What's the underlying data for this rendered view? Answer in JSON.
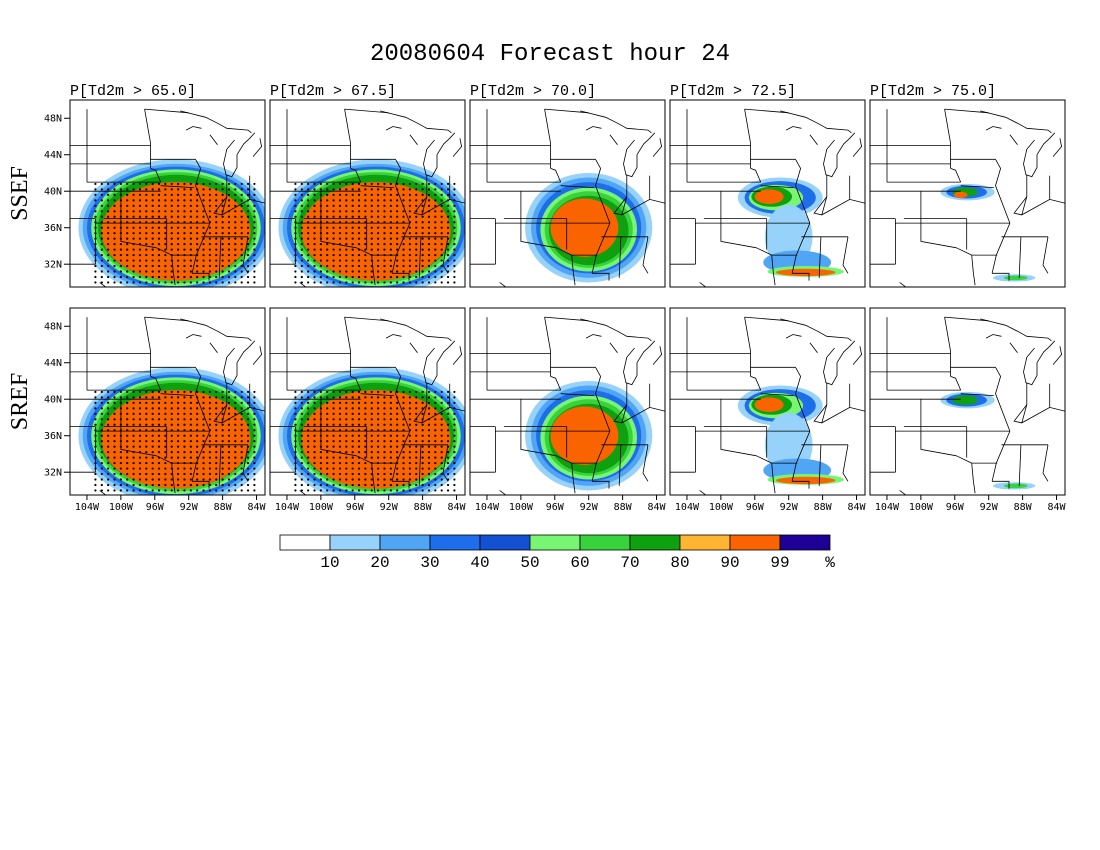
{
  "figure": {
    "title": "20080604 Forecast hour 24",
    "rows": [
      "SSEF",
      "SREF"
    ],
    "columns": [
      "P[Td2m > 65.0]",
      "P[Td2m > 67.5]",
      "P[Td2m > 70.0]",
      "P[Td2m > 72.5]",
      "P[Td2m > 75.0]"
    ],
    "lat_ticks": [
      "48N",
      "44N",
      "40N",
      "36N",
      "32N"
    ],
    "lon_ticks": [
      "104W",
      "100W",
      "96W",
      "92W",
      "88W",
      "84W"
    ]
  },
  "colorbar": {
    "labels": [
      "10",
      "20",
      "30",
      "40",
      "50",
      "60",
      "70",
      "80",
      "90",
      "99",
      "%"
    ],
    "colors": [
      "#ffffff",
      "#96d2fa",
      "#50a5f5",
      "#1e6eeb",
      "#1450d2",
      "#78f573",
      "#37d23c",
      "#0fa00f",
      "#ffb432",
      "#fa6400",
      "#1e0096"
    ]
  },
  "chart_data": {
    "type": "heatmap",
    "description_levels": [
      10,
      20,
      30,
      40,
      50,
      60,
      70,
      80,
      90,
      99
    ],
    "unit": "%",
    "lon_range": [
      -106,
      -83
    ],
    "lat_range": [
      29.5,
      50
    ],
    "panels": [
      {
        "row": "SSEF",
        "threshold": 65.0,
        "core_max": 99,
        "extent": "large"
      },
      {
        "row": "SSEF",
        "threshold": 67.5,
        "core_max": 99,
        "extent": "large"
      },
      {
        "row": "SSEF",
        "threshold": 70.0,
        "core_max": 99,
        "extent": "medium"
      },
      {
        "row": "SSEF",
        "threshold": 72.5,
        "core_max": 99,
        "extent": "small"
      },
      {
        "row": "SSEF",
        "threshold": 75.0,
        "core_max": 90,
        "extent": "tiny"
      },
      {
        "row": "SREF",
        "threshold": 65.0,
        "core_max": 99,
        "extent": "large"
      },
      {
        "row": "SREF",
        "threshold": 67.5,
        "core_max": 99,
        "extent": "large"
      },
      {
        "row": "SREF",
        "threshold": 70.0,
        "core_max": 99,
        "extent": "medium"
      },
      {
        "row": "SREF",
        "threshold": 72.5,
        "core_max": 90,
        "extent": "small"
      },
      {
        "row": "SREF",
        "threshold": 75.0,
        "core_max": 40,
        "extent": "tiny"
      }
    ]
  }
}
